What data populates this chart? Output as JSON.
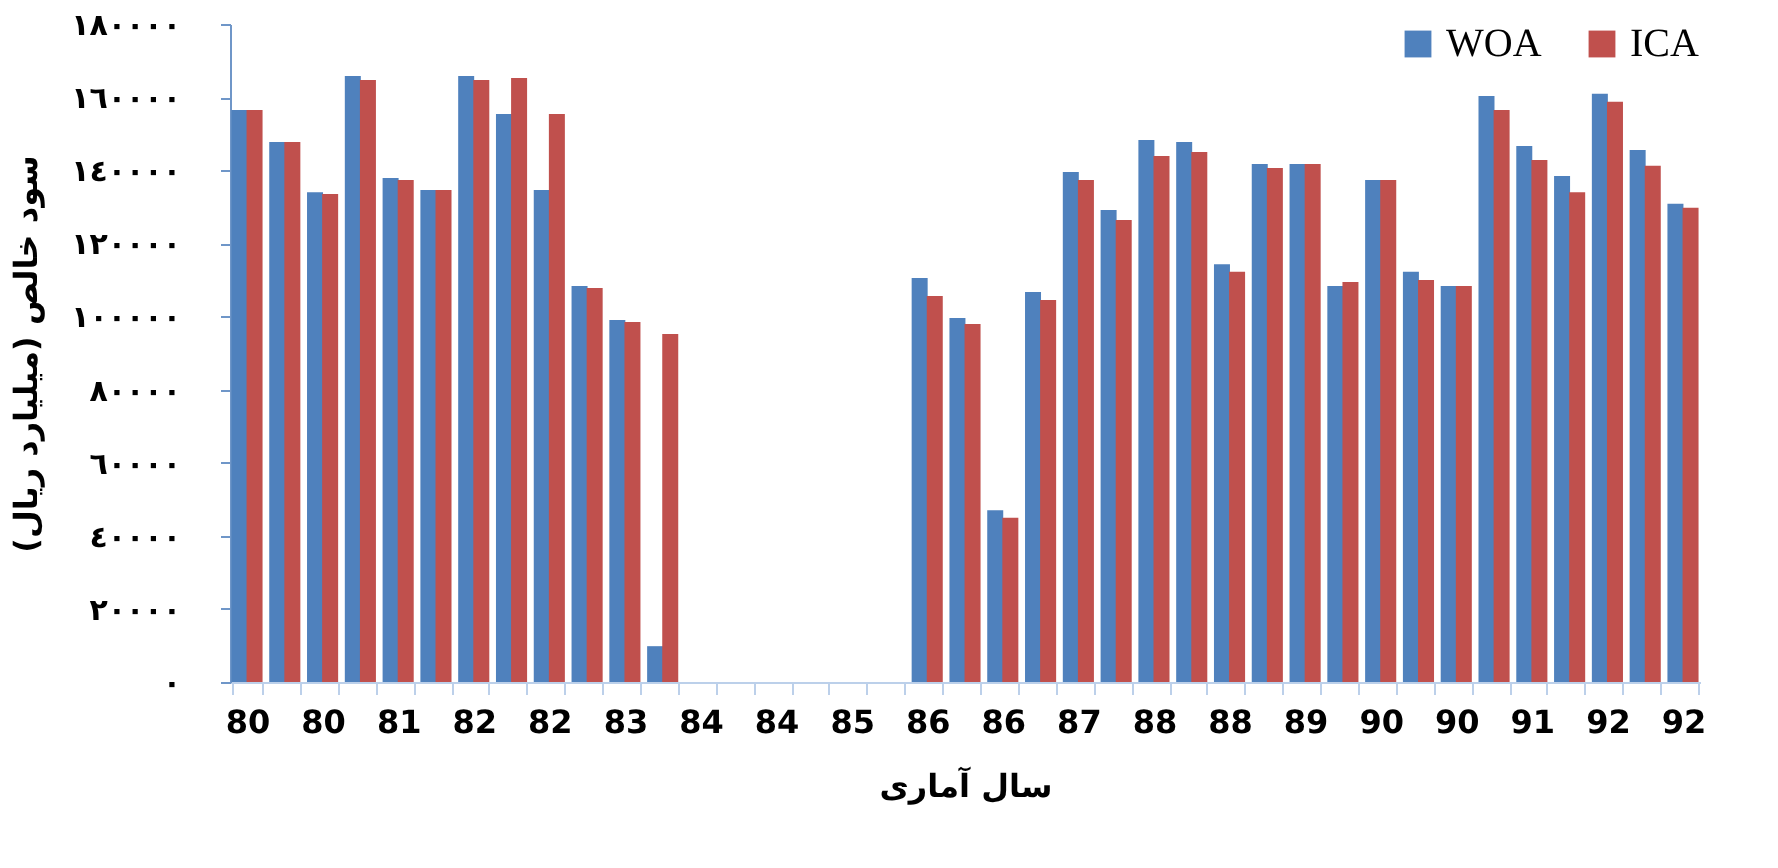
{
  "chart_data": {
    "type": "bar",
    "xlabel": "سال آماری",
    "ylabel": "سود خالص (میلیارد ریال)",
    "categories": [
      "80",
      null,
      "80",
      null,
      "81",
      null,
      "82",
      null,
      "82",
      null,
      "83",
      null,
      "84",
      null,
      "84",
      null,
      "85",
      null,
      "86",
      null,
      "86",
      null,
      "87",
      null,
      "88",
      null,
      "88",
      null,
      "89",
      null,
      "90",
      null,
      "90",
      null,
      "91",
      null,
      "92",
      null,
      "92"
    ],
    "series": [
      {
        "name": "WOA",
        "color": "#4f81bd",
        "values": [
          156500,
          147700,
          134000,
          165800,
          137900,
          134600,
          165800,
          155400,
          134600,
          108300,
          99000,
          9800,
          null,
          null,
          null,
          null,
          null,
          null,
          110500,
          99600,
          47000,
          106700,
          139500,
          129100,
          148300,
          147700,
          114300,
          141700,
          141700,
          108300,
          137300,
          112200,
          108300,
          160300,
          146600,
          138400,
          160900,
          145500,
          130800
        ]
      },
      {
        "name": "ICA",
        "color": "#c0504d",
        "values": [
          156500,
          147700,
          133500,
          164700,
          137300,
          134600,
          164700,
          165200,
          155400,
          107800,
          98500,
          95200,
          null,
          null,
          null,
          null,
          null,
          null,
          105600,
          97900,
          44900,
          104500,
          137300,
          126400,
          143900,
          145000,
          112200,
          140600,
          141700,
          109400,
          137300,
          110000,
          108300,
          156500,
          142800,
          134000,
          158700,
          141200,
          129700
        ]
      }
    ],
    "ylim": [
      0,
      180000
    ],
    "yticks": [
      {
        "value": 0,
        "label": "٠"
      },
      {
        "value": 20000,
        "label": "٢٠٠٠٠"
      },
      {
        "value": 40000,
        "label": "٤٠٠٠٠"
      },
      {
        "value": 60000,
        "label": "٦٠٠٠٠"
      },
      {
        "value": 80000,
        "label": "٨٠٠٠٠"
      },
      {
        "value": 100000,
        "label": "١٠٠٠٠٠"
      },
      {
        "value": 120000,
        "label": "١٢٠٠٠٠"
      },
      {
        "value": 140000,
        "label": "١٤٠٠٠٠"
      },
      {
        "value": 160000,
        "label": "١٦٠٠٠٠"
      },
      {
        "value": 180000,
        "label": "١٨٠٠٠٠"
      }
    ],
    "grid": false,
    "legend": "top right"
  }
}
